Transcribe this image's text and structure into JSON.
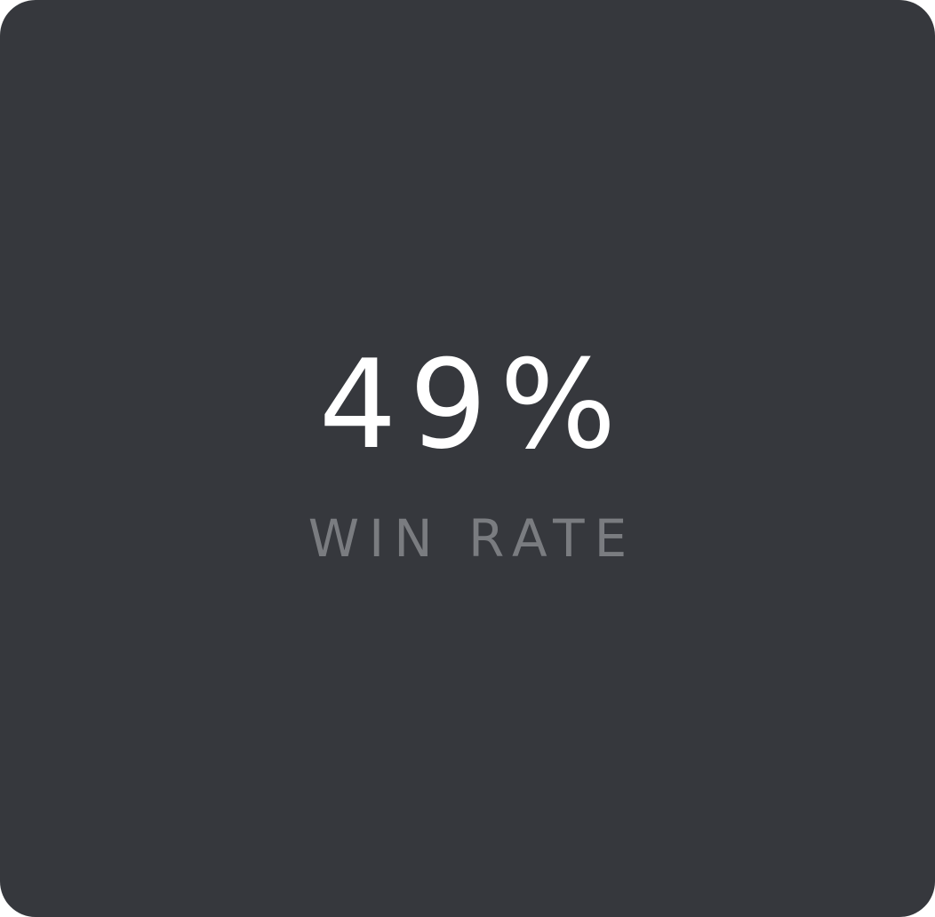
{
  "stat": {
    "value": "49%",
    "label": "WIN RATE"
  },
  "colors": {
    "card_background": "#36383d",
    "value_text": "#ffffff",
    "label_text": "#7a7c80"
  }
}
